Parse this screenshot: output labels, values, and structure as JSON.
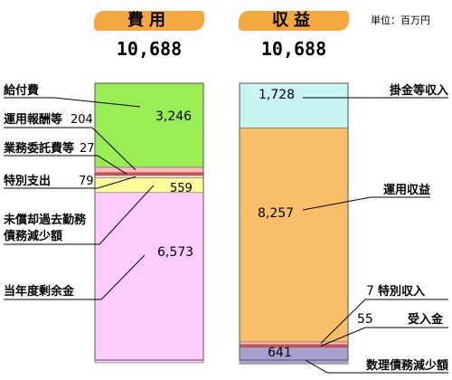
{
  "unit_note": "単位：百万円",
  "chart_data": {
    "type": "bar",
    "unit": "単位：百万円",
    "columns": [
      {
        "title": "費用",
        "total": "10,688",
        "segments": [
          {
            "label": "給付費",
            "value": 3246,
            "value_text": "3,246",
            "color": "#99ee55"
          },
          {
            "label": "運用報酬等",
            "value": 204,
            "value_text": "204",
            "color": "#ffbbbb"
          },
          {
            "label": "業務委託費等",
            "value": 27,
            "value_text": "27",
            "color": "#ee4444"
          },
          {
            "label": "特別支出",
            "value": 79,
            "value_text": "79",
            "color": "#ffdddd"
          },
          {
            "label": "未償却過去勤務債務減少額",
            "value": 559,
            "value_text": "559",
            "color": "#ffff99"
          },
          {
            "label": "当年度剰余金",
            "value": 6573,
            "value_text": "6,573",
            "color": "#ffccff"
          }
        ]
      },
      {
        "title": "収益",
        "total": "10,688",
        "segments": [
          {
            "label": "掛金等収入",
            "value": 1728,
            "value_text": "1,728",
            "color": "#c8f4f4"
          },
          {
            "label": "運用収益",
            "value": 8257,
            "value_text": "8,257",
            "color": "#f8be6a"
          },
          {
            "label": "特別収入",
            "value": 7,
            "value_text": "7",
            "color": "#ffbbbb"
          },
          {
            "label": "受入金",
            "value": 55,
            "value_text": "55",
            "color": "#ee4444"
          },
          {
            "label": "数理債務減少額",
            "value": 641,
            "value_text": "641",
            "color": "#a8a0d0"
          }
        ]
      }
    ]
  }
}
